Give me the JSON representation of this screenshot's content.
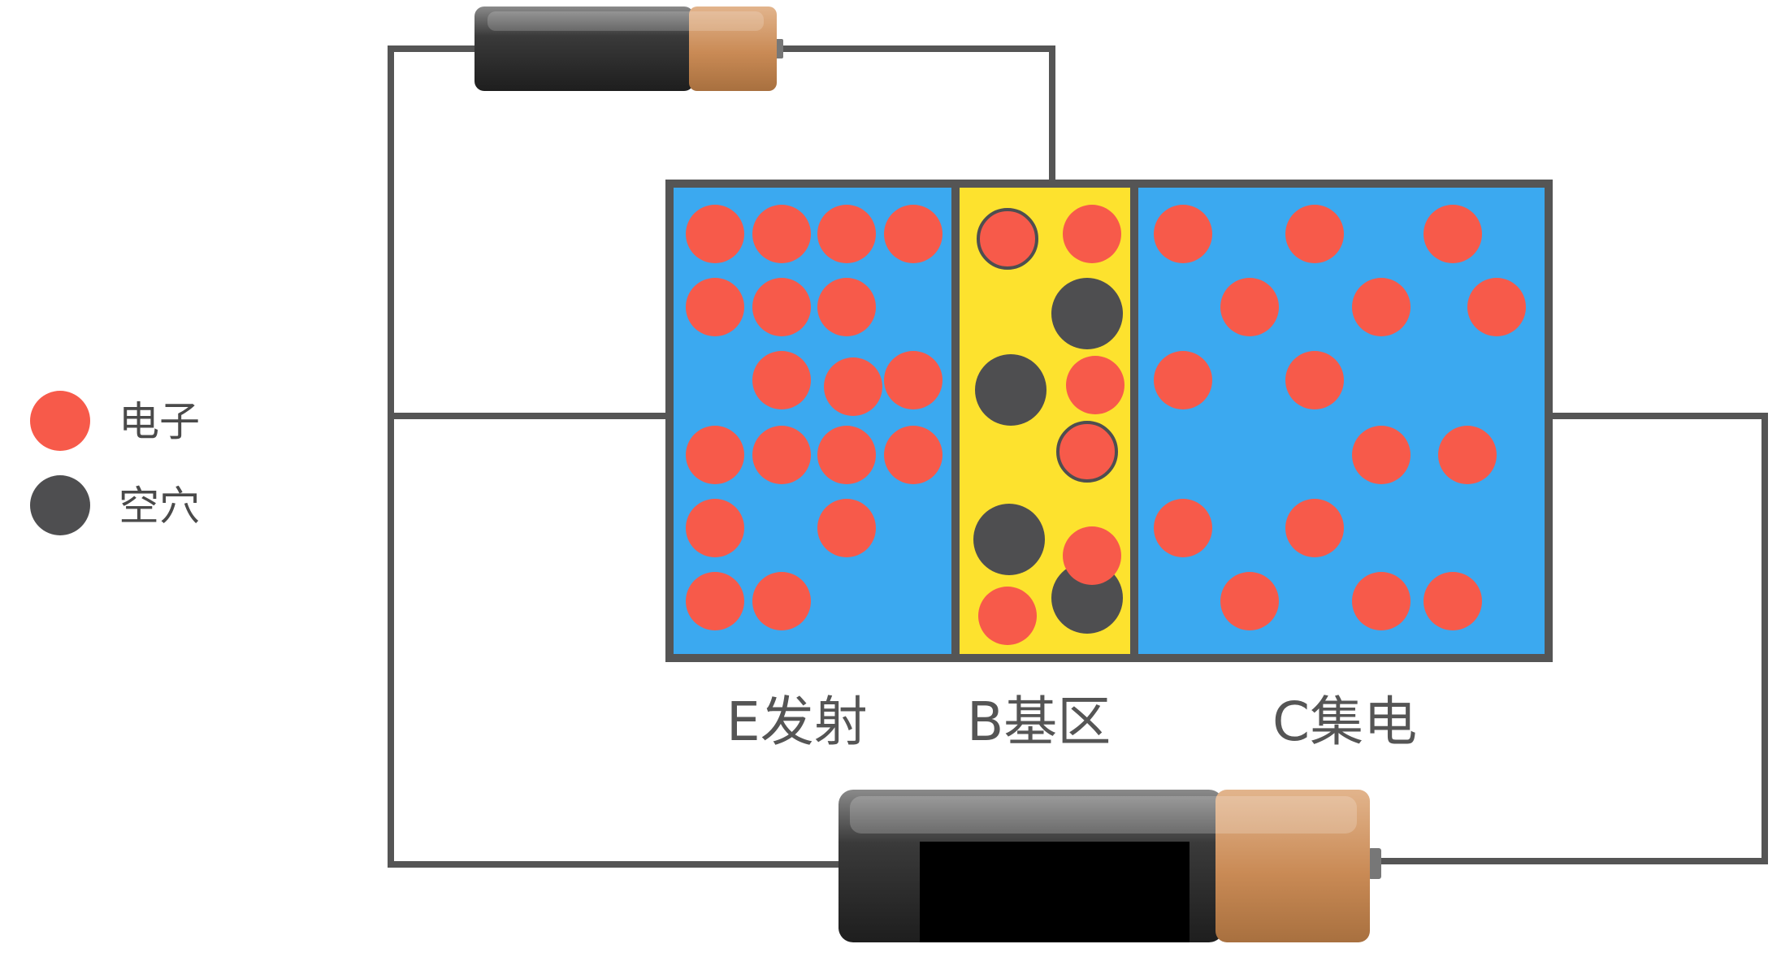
{
  "legend": {
    "electron_label": "电子",
    "hole_label": "空穴"
  },
  "regions": {
    "emitter_label": "E发射",
    "base_label": "B基区",
    "collector_label": "C集电"
  },
  "colors": {
    "electron": "#f75a4a",
    "hole": "#4e4e50",
    "n_region": "#3ba9f0",
    "p_region": "#fde22e",
    "wire": "#555555",
    "battery_body": "#2b2b2b",
    "battery_cap": "#c98a55"
  },
  "icons": {
    "small_battery": "battery-icon",
    "large_battery": "battery-icon"
  }
}
